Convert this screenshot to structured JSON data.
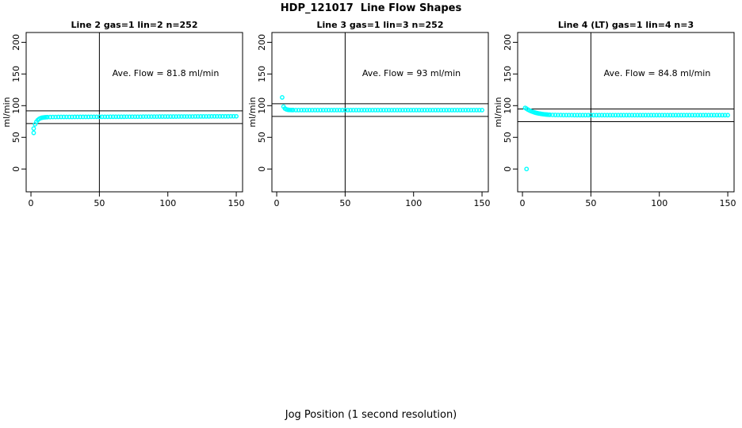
{
  "title": "HDP_121017  Line Flow Shapes",
  "xlabel": "Jog Position (1 second resolution)",
  "colors": {
    "points": "#00ffff",
    "axis": "#000000",
    "background": "#ffffff"
  },
  "chart_data": [
    {
      "type": "scatter",
      "title": "Line 2 gas=1 lin=2 n=252",
      "annotation": "Ave. Flow =  81.8  ml/min",
      "ave_flow_ml_min": 81.8,
      "n": 252,
      "ylabel": "ml/min",
      "xticks": [
        0,
        50,
        100,
        150
      ],
      "yticks": [
        0,
        50,
        100,
        150,
        200
      ],
      "xlim": [
        -3.5,
        154.6
      ],
      "ylim": [
        -36,
        215.5
      ],
      "vline_x": 50,
      "hlines": [
        91.8,
        71.8
      ],
      "points": [
        [
          2,
          63.9
        ],
        [
          3,
          70.5
        ],
        [
          4,
          74.7
        ],
        [
          5,
          77.4
        ],
        [
          6,
          79.1
        ],
        [
          7,
          80.2
        ],
        [
          8,
          80.9
        ],
        [
          9,
          81.3
        ],
        [
          10,
          81.6
        ],
        [
          11,
          81.8
        ],
        [
          12,
          81.9
        ],
        [
          14,
          82.0
        ],
        [
          16,
          82.1
        ],
        [
          18,
          82.1
        ],
        [
          20,
          82.2
        ],
        [
          22,
          82.2
        ],
        [
          24,
          82.2
        ],
        [
          26,
          82.2
        ],
        [
          28,
          82.2
        ],
        [
          30,
          82.2
        ],
        [
          32,
          82.3
        ],
        [
          34,
          82.3
        ],
        [
          36,
          82.3
        ],
        [
          38,
          82.3
        ],
        [
          40,
          82.3
        ],
        [
          42,
          82.3
        ],
        [
          44,
          82.4
        ],
        [
          46,
          82.4
        ],
        [
          48,
          82.4
        ],
        [
          50,
          82.4
        ],
        [
          52,
          82.4
        ],
        [
          54,
          82.4
        ],
        [
          56,
          82.4
        ],
        [
          58,
          82.5
        ],
        [
          60,
          82.5
        ],
        [
          62,
          82.5
        ],
        [
          64,
          82.5
        ],
        [
          66,
          82.5
        ],
        [
          68,
          82.5
        ],
        [
          70,
          82.6
        ],
        [
          72,
          82.6
        ],
        [
          74,
          82.6
        ],
        [
          76,
          82.6
        ],
        [
          78,
          82.6
        ],
        [
          80,
          82.6
        ],
        [
          82,
          82.7
        ],
        [
          84,
          82.7
        ],
        [
          86,
          82.7
        ],
        [
          88,
          82.7
        ],
        [
          90,
          82.7
        ],
        [
          92,
          82.7
        ],
        [
          94,
          82.8
        ],
        [
          96,
          82.8
        ],
        [
          98,
          82.8
        ],
        [
          100,
          82.8
        ],
        [
          102,
          82.8
        ],
        [
          104,
          82.8
        ],
        [
          106,
          82.8
        ],
        [
          108,
          82.9
        ],
        [
          110,
          82.9
        ],
        [
          112,
          82.9
        ],
        [
          114,
          82.9
        ],
        [
          116,
          82.9
        ],
        [
          118,
          82.9
        ],
        [
          120,
          83.0
        ],
        [
          122,
          83.0
        ],
        [
          124,
          83.0
        ],
        [
          126,
          83.0
        ],
        [
          128,
          83.0
        ],
        [
          130,
          83.0
        ],
        [
          132,
          83.1
        ],
        [
          134,
          83.1
        ],
        [
          136,
          83.1
        ],
        [
          138,
          83.1
        ],
        [
          140,
          83.1
        ],
        [
          142,
          83.1
        ],
        [
          144,
          83.1
        ],
        [
          146,
          83.2
        ],
        [
          148,
          83.2
        ],
        [
          150,
          83.2
        ]
      ],
      "outliers": [
        [
          2,
          57
        ]
      ]
    },
    {
      "type": "scatter",
      "title": "Line 3 gas=1 lin=3 n=252",
      "annotation": "Ave. Flow =  93  ml/min",
      "ave_flow_ml_min": 93,
      "n": 252,
      "ylabel": "ml/min",
      "xticks": [
        0,
        50,
        100,
        150
      ],
      "yticks": [
        0,
        50,
        100,
        150,
        200
      ],
      "xlim": [
        -3.5,
        154.6
      ],
      "ylim": [
        -36,
        215.5
      ],
      "vline_x": 50,
      "hlines": [
        103,
        83
      ],
      "points": [
        [
          5,
          98.5
        ],
        [
          6,
          95.5
        ],
        [
          7,
          94.2
        ],
        [
          8,
          93.6
        ],
        [
          9,
          93.3
        ],
        [
          10,
          93.2
        ],
        [
          11,
          93.1
        ],
        [
          12,
          93.1
        ],
        [
          14,
          93.0
        ],
        [
          16,
          93.0
        ],
        [
          18,
          93.0
        ],
        [
          20,
          93.0
        ],
        [
          22,
          93.0
        ],
        [
          24,
          93.0
        ],
        [
          26,
          93.0
        ],
        [
          28,
          93.0
        ],
        [
          30,
          93.0
        ],
        [
          32,
          93.0
        ],
        [
          34,
          93.0
        ],
        [
          36,
          93.0
        ],
        [
          38,
          93.0
        ],
        [
          40,
          93.0
        ],
        [
          42,
          93.0
        ],
        [
          44,
          93.0
        ],
        [
          46,
          93.0
        ],
        [
          48,
          93.0
        ],
        [
          50,
          93.0
        ],
        [
          52,
          93.0
        ],
        [
          54,
          93.0
        ],
        [
          56,
          93.0
        ],
        [
          58,
          93.0
        ],
        [
          60,
          93.0
        ],
        [
          62,
          93.0
        ],
        [
          64,
          93.0
        ],
        [
          66,
          93.0
        ],
        [
          68,
          93.0
        ],
        [
          70,
          93.0
        ],
        [
          72,
          93.0
        ],
        [
          74,
          93.0
        ],
        [
          76,
          93.0
        ],
        [
          78,
          93.0
        ],
        [
          80,
          93.0
        ],
        [
          82,
          93.0
        ],
        [
          84,
          93.0
        ],
        [
          86,
          93.0
        ],
        [
          88,
          93.0
        ],
        [
          90,
          93.0
        ],
        [
          92,
          93.0
        ],
        [
          94,
          93.0
        ],
        [
          96,
          93.0
        ],
        [
          98,
          93.0
        ],
        [
          100,
          93.0
        ],
        [
          102,
          93.0
        ],
        [
          104,
          93.0
        ],
        [
          106,
          93.0
        ],
        [
          108,
          93.0
        ],
        [
          110,
          93.0
        ],
        [
          112,
          93.0
        ],
        [
          114,
          93.0
        ],
        [
          116,
          93.0
        ],
        [
          118,
          93.0
        ],
        [
          120,
          93.0
        ],
        [
          122,
          93.0
        ],
        [
          124,
          93.0
        ],
        [
          126,
          93.0
        ],
        [
          128,
          93.0
        ],
        [
          130,
          93.0
        ],
        [
          132,
          93.0
        ],
        [
          134,
          93.0
        ],
        [
          136,
          93.0
        ],
        [
          138,
          93.0
        ],
        [
          140,
          93.0
        ],
        [
          142,
          93.0
        ],
        [
          144,
          93.0
        ],
        [
          146,
          93.0
        ],
        [
          148,
          93.0
        ],
        [
          150,
          93.0
        ]
      ],
      "outliers": [
        [
          4,
          113
        ]
      ]
    },
    {
      "type": "scatter",
      "title": "Line 4 (LT) gas=1 lin=4 n=3",
      "annotation": "Ave. Flow =  84.8  ml/min",
      "ave_flow_ml_min": 84.8,
      "n": 3,
      "ylabel": "ml/min",
      "xticks": [
        0,
        50,
        100,
        150
      ],
      "yticks": [
        0,
        50,
        100,
        150,
        200
      ],
      "xlim": [
        -3.5,
        154.6
      ],
      "ylim": [
        -36,
        215.5
      ],
      "vline_x": 50,
      "hlines": [
        94.8,
        74.8
      ],
      "points": [
        [
          2,
          96.5
        ],
        [
          3,
          95.2
        ],
        [
          4,
          93.8
        ],
        [
          5,
          92.6
        ],
        [
          6,
          91.6
        ],
        [
          7,
          90.7
        ],
        [
          8,
          89.9
        ],
        [
          9,
          89.2
        ],
        [
          10,
          88.6
        ],
        [
          11,
          88.1
        ],
        [
          12,
          87.6
        ],
        [
          13,
          87.3
        ],
        [
          14,
          86.9
        ],
        [
          15,
          86.6
        ],
        [
          16,
          86.3
        ],
        [
          17,
          86.1
        ],
        [
          18,
          85.9
        ],
        [
          19,
          85.7
        ],
        [
          20,
          85.6
        ],
        [
          22,
          85.4
        ],
        [
          24,
          85.3
        ],
        [
          26,
          85.2
        ],
        [
          28,
          85.2
        ],
        [
          30,
          85.1
        ],
        [
          32,
          85.1
        ],
        [
          34,
          85.1
        ],
        [
          36,
          85.1
        ],
        [
          38,
          85.0
        ],
        [
          40,
          85.0
        ],
        [
          42,
          85.0
        ],
        [
          44,
          85.0
        ],
        [
          46,
          85.0
        ],
        [
          48,
          85.0
        ],
        [
          50,
          85.0
        ],
        [
          52,
          85.0
        ],
        [
          54,
          85.0
        ],
        [
          56,
          85.0
        ],
        [
          58,
          85.0
        ],
        [
          60,
          85.0
        ],
        [
          62,
          85.0
        ],
        [
          64,
          85.0
        ],
        [
          66,
          85.0
        ],
        [
          68,
          85.0
        ],
        [
          70,
          85.0
        ],
        [
          72,
          85.0
        ],
        [
          74,
          85.0
        ],
        [
          76,
          85.0
        ],
        [
          78,
          85.0
        ],
        [
          80,
          85.0
        ],
        [
          82,
          85.0
        ],
        [
          84,
          85.0
        ],
        [
          86,
          85.0
        ],
        [
          88,
          85.0
        ],
        [
          90,
          85.0
        ],
        [
          92,
          85.0
        ],
        [
          94,
          85.0
        ],
        [
          96,
          85.0
        ],
        [
          98,
          85.0
        ],
        [
          100,
          85.0
        ],
        [
          102,
          85.0
        ],
        [
          104,
          85.0
        ],
        [
          106,
          85.0
        ],
        [
          108,
          85.0
        ],
        [
          110,
          85.0
        ],
        [
          112,
          85.0
        ],
        [
          114,
          85.0
        ],
        [
          116,
          85.0
        ],
        [
          118,
          85.0
        ],
        [
          120,
          85.0
        ],
        [
          122,
          85.0
        ],
        [
          124,
          85.0
        ],
        [
          126,
          85.0
        ],
        [
          128,
          85.0
        ],
        [
          130,
          85.0
        ],
        [
          132,
          85.0
        ],
        [
          134,
          85.0
        ],
        [
          136,
          85.0
        ],
        [
          138,
          85.0
        ],
        [
          140,
          85.0
        ],
        [
          142,
          85.0
        ],
        [
          144,
          85.0
        ],
        [
          146,
          85.0
        ],
        [
          148,
          85.0
        ],
        [
          150,
          85.0
        ]
      ],
      "outliers": [
        [
          3,
          0
        ]
      ]
    }
  ]
}
